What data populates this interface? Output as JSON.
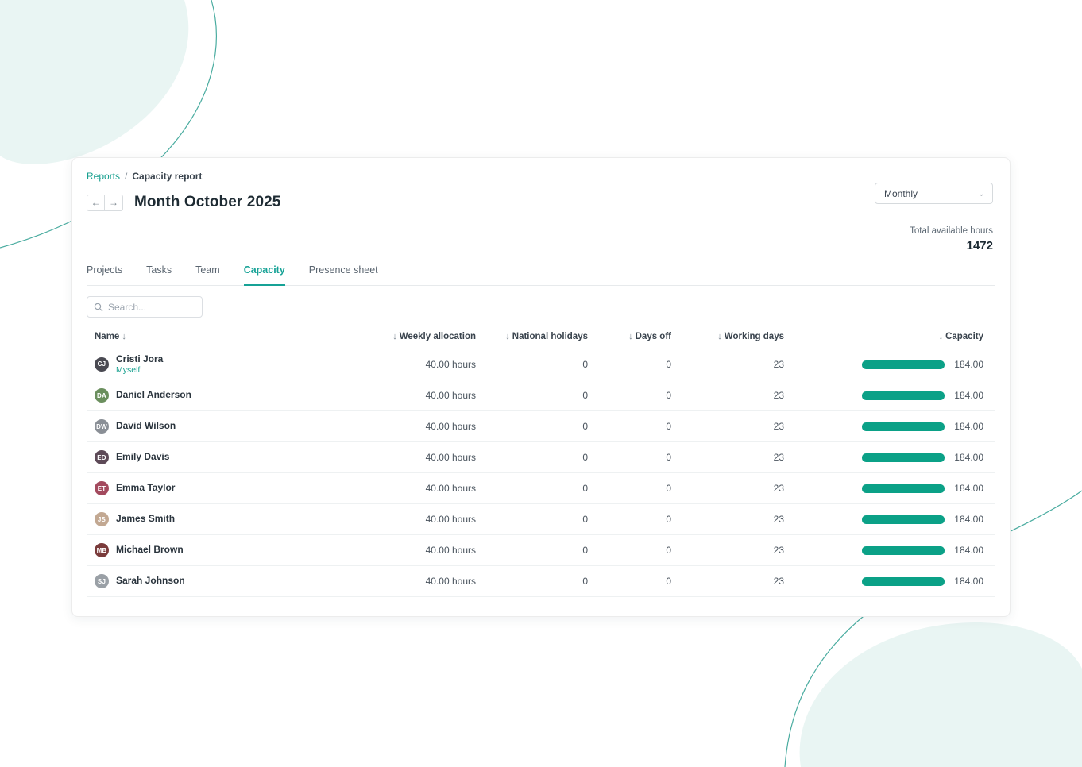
{
  "colors": {
    "accent": "#16a296",
    "capacity_bar": "#0ba187",
    "blob_fill": "#e9f5f3",
    "blob_stroke": "#2a9d8f"
  },
  "breadcrumb": {
    "parent": "Reports",
    "separator": "/",
    "current": "Capacity report"
  },
  "nav": {
    "prev": "←",
    "next": "→"
  },
  "title": "Month October 2025",
  "period_select": {
    "value": "Monthly",
    "chevron": "⌄"
  },
  "total": {
    "label": "Total available hours",
    "value": "1472"
  },
  "tabs": [
    {
      "label": "Projects",
      "active": false
    },
    {
      "label": "Tasks",
      "active": false
    },
    {
      "label": "Team",
      "active": false
    },
    {
      "label": "Capacity",
      "active": true
    },
    {
      "label": "Presence sheet",
      "active": false
    }
  ],
  "search": {
    "placeholder": "Search..."
  },
  "table": {
    "columns": [
      {
        "label": "Name",
        "arrow": "↓",
        "arrow_position": "after",
        "align": "left"
      },
      {
        "label": "Weekly allocation",
        "arrow": "↓",
        "arrow_position": "before",
        "align": "right"
      },
      {
        "label": "National holidays",
        "arrow": "↓",
        "arrow_position": "before",
        "align": "right"
      },
      {
        "label": "Days off",
        "arrow": "↓",
        "arrow_position": "before",
        "align": "right"
      },
      {
        "label": "Working days",
        "arrow": "↓",
        "arrow_position": "before",
        "align": "right"
      },
      {
        "label": "Capacity",
        "arrow": "↓",
        "arrow_position": "before",
        "align": "right"
      }
    ],
    "rows": [
      {
        "name": "Cristi Jora",
        "subtitle": "Myself",
        "initials": "CJ",
        "avatar_color": "#4a4a52",
        "weekly_allocation": "40.00 hours",
        "national_holidays": "0",
        "days_off": "0",
        "working_days": "23",
        "capacity": "184.00"
      },
      {
        "name": "Daniel Anderson",
        "subtitle": "",
        "initials": "DA",
        "avatar_color": "#6b8f5e",
        "weekly_allocation": "40.00 hours",
        "national_holidays": "0",
        "days_off": "0",
        "working_days": "23",
        "capacity": "184.00"
      },
      {
        "name": "David Wilson",
        "subtitle": "",
        "initials": "DW",
        "avatar_color": "#8a8f96",
        "weekly_allocation": "40.00 hours",
        "national_holidays": "0",
        "days_off": "0",
        "working_days": "23",
        "capacity": "184.00"
      },
      {
        "name": "Emily Davis",
        "subtitle": "",
        "initials": "ED",
        "avatar_color": "#5d4a57",
        "weekly_allocation": "40.00 hours",
        "national_holidays": "0",
        "days_off": "0",
        "working_days": "23",
        "capacity": "184.00"
      },
      {
        "name": "Emma Taylor",
        "subtitle": "",
        "initials": "ET",
        "avatar_color": "#a34a5e",
        "weekly_allocation": "40.00 hours",
        "national_holidays": "0",
        "days_off": "0",
        "working_days": "23",
        "capacity": "184.00"
      },
      {
        "name": "James Smith",
        "subtitle": "",
        "initials": "JS",
        "avatar_color": "#c2a892",
        "weekly_allocation": "40.00 hours",
        "national_holidays": "0",
        "days_off": "0",
        "working_days": "23",
        "capacity": "184.00"
      },
      {
        "name": "Michael Brown",
        "subtitle": "",
        "initials": "MB",
        "avatar_color": "#7a3b3b",
        "weekly_allocation": "40.00 hours",
        "national_holidays": "0",
        "days_off": "0",
        "working_days": "23",
        "capacity": "184.00"
      },
      {
        "name": "Sarah Johnson",
        "subtitle": "",
        "initials": "SJ",
        "avatar_color": "#9aa0a6",
        "weekly_allocation": "40.00 hours",
        "national_holidays": "0",
        "days_off": "0",
        "working_days": "23",
        "capacity": "184.00"
      }
    ]
  }
}
